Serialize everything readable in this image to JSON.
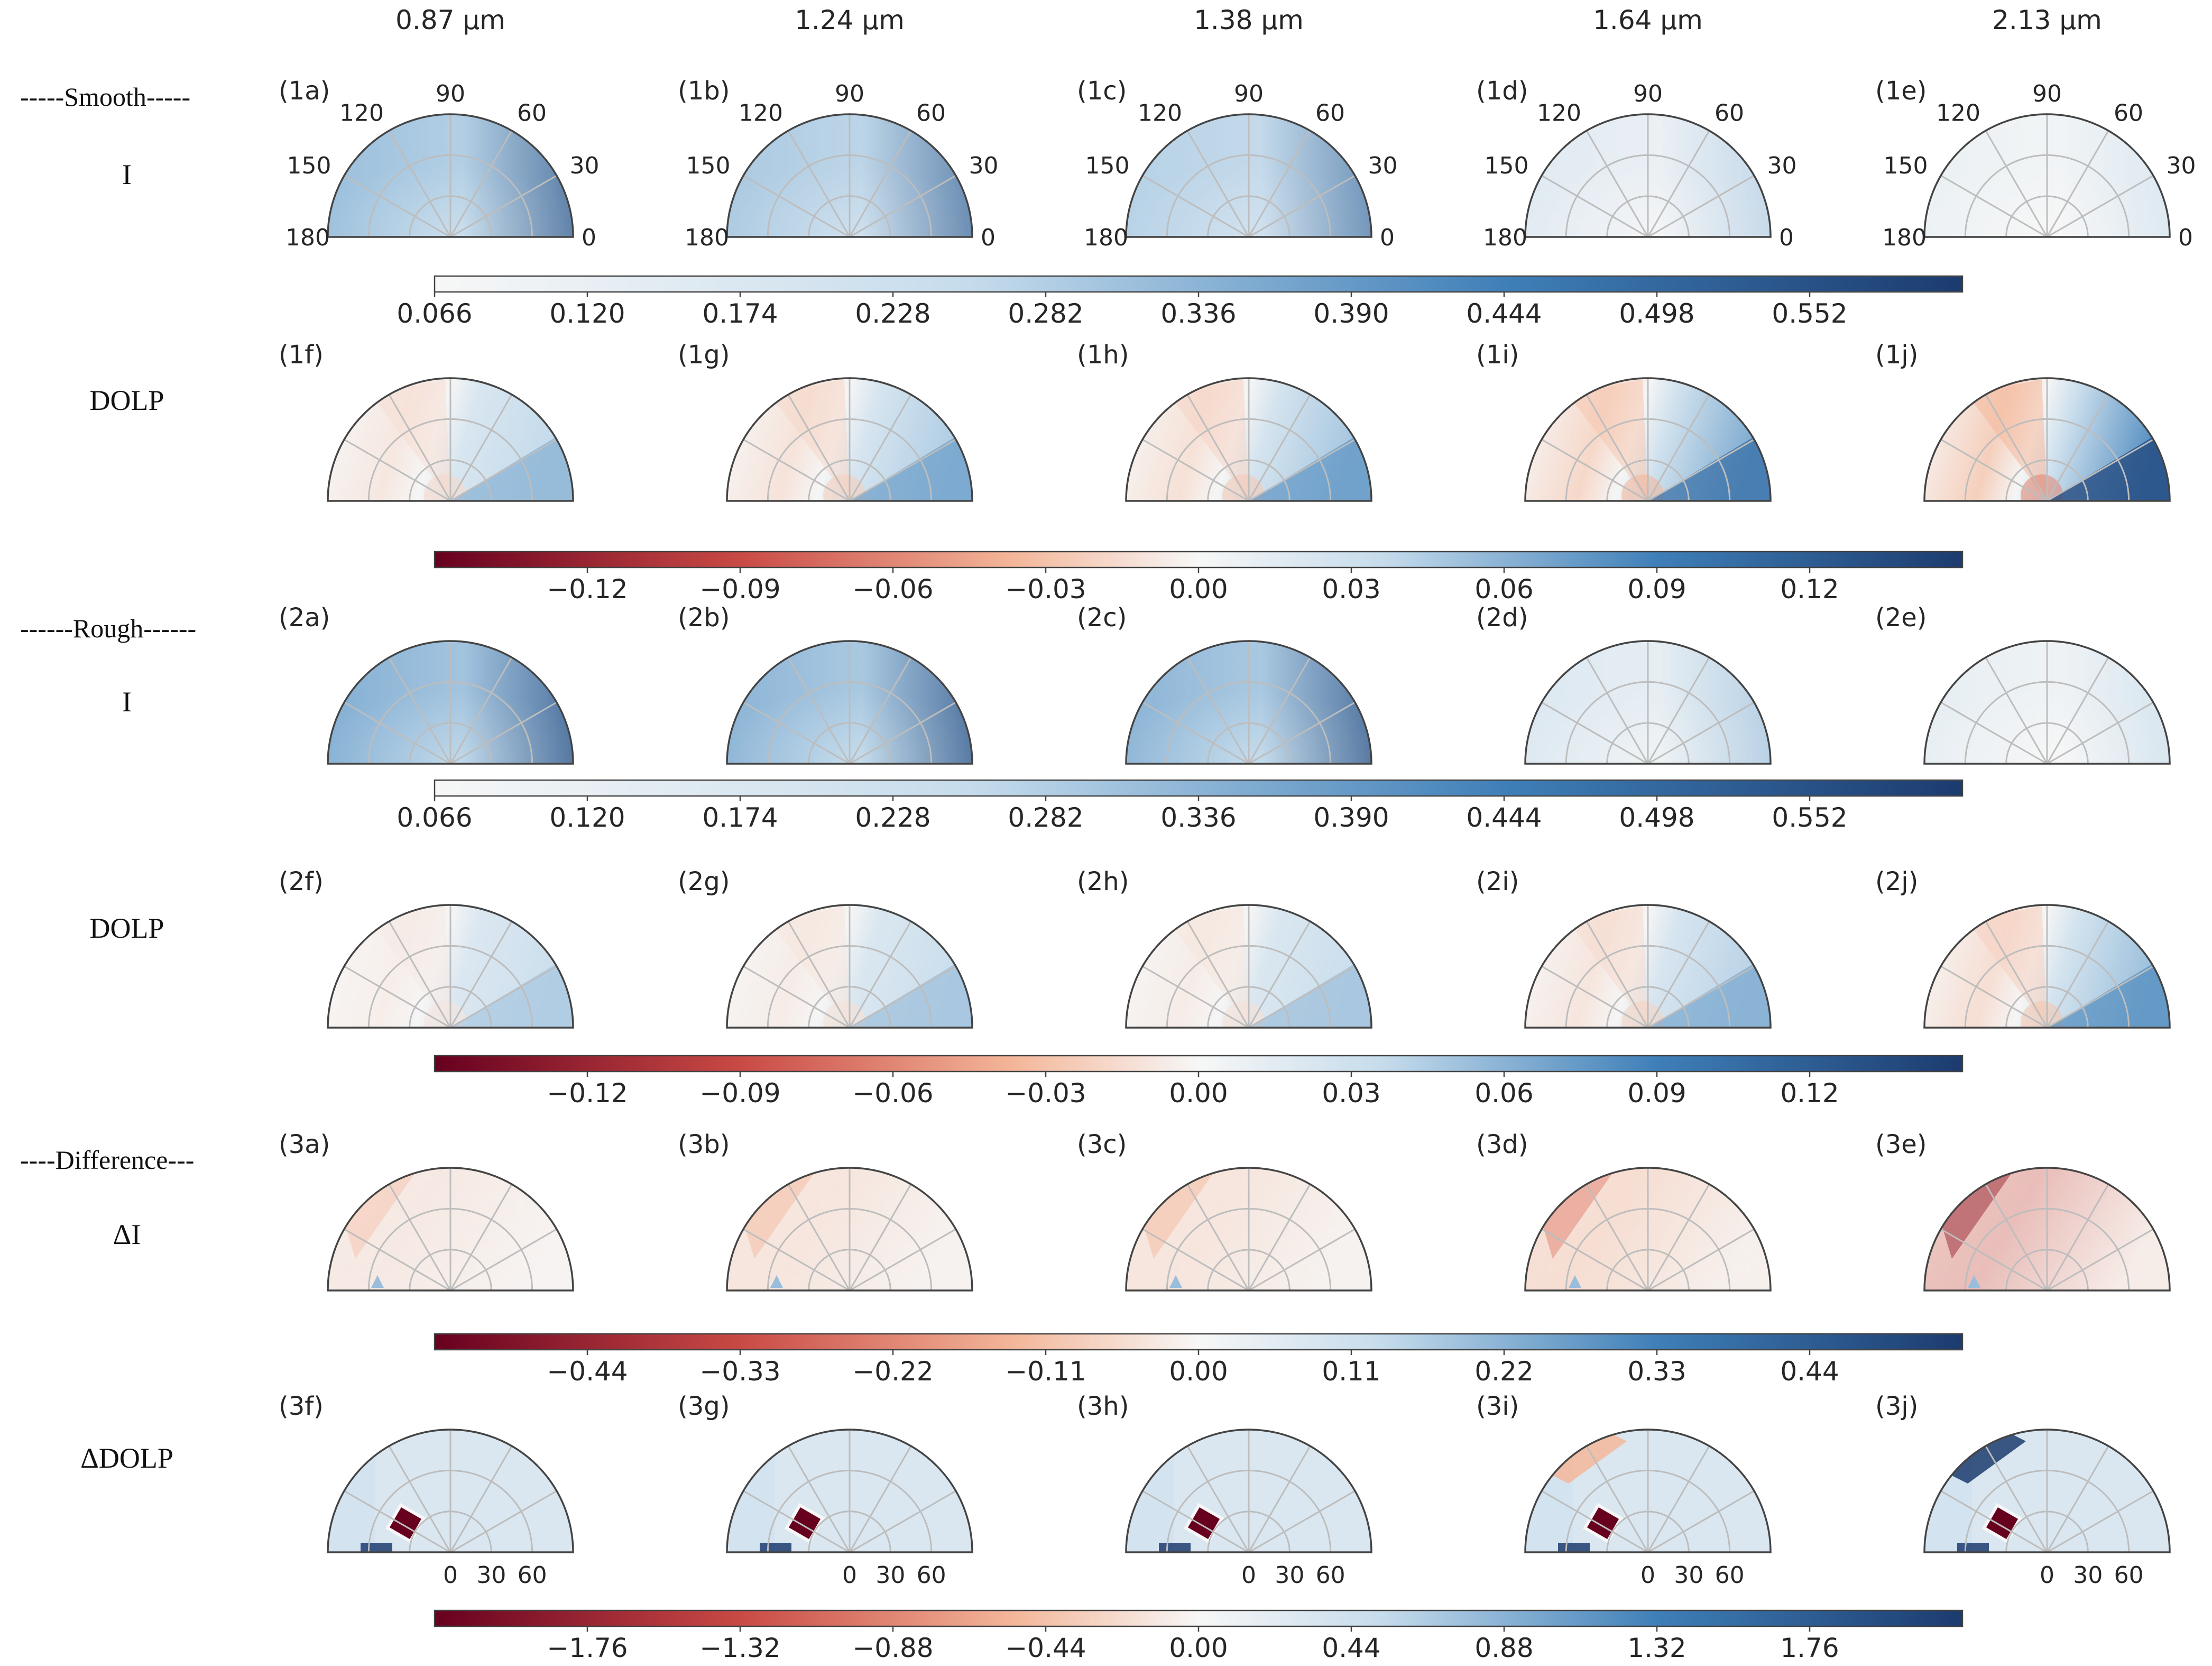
{
  "chart_data": {
    "type": "heatmap",
    "subtype": "polar-semicircle-grid",
    "title": "",
    "columns": [
      "0.87 µm",
      "1.24 µm",
      "1.38 µm",
      "1.64 µm",
      "2.13 µm"
    ],
    "group_labels": [
      "-----Smooth-----",
      "------Rough------",
      "----Difference---"
    ],
    "angle_ticks": [
      "0",
      "30",
      "60",
      "90",
      "120",
      "150",
      "180"
    ],
    "bottom_ticks": [
      "0",
      "30",
      "60"
    ],
    "rows": [
      {
        "label": "I",
        "panels": [
          "(1a)",
          "(1b)",
          "(1c)",
          "(1d)",
          "(1e)"
        ],
        "palette": "blues",
        "intensity": [
          0.7,
          0.66,
          0.63,
          0.28,
          0.14
        ]
      },
      {
        "label": "DOLP",
        "panels": [
          "(1f)",
          "(1g)",
          "(1h)",
          "(1i)",
          "(1j)"
        ],
        "palette": "diverging",
        "intensity": [
          0.35,
          0.45,
          0.5,
          0.7,
          0.9
        ]
      },
      {
        "label": "I",
        "panels": [
          "(2a)",
          "(2b)",
          "(2c)",
          "(2d)",
          "(2e)"
        ],
        "palette": "blues",
        "intensity": [
          0.76,
          0.74,
          0.74,
          0.33,
          0.2
        ]
      },
      {
        "label": "DOLP",
        "panels": [
          "(2f)",
          "(2g)",
          "(2h)",
          "(2i)",
          "(2j)"
        ],
        "palette": "diverging",
        "intensity": [
          0.2,
          0.25,
          0.25,
          0.4,
          0.55
        ]
      },
      {
        "label": "ΔI",
        "panels": [
          "(3a)",
          "(3b)",
          "(3c)",
          "(3d)",
          "(3e)"
        ],
        "palette": "reds",
        "intensity": [
          0.3,
          0.38,
          0.38,
          0.55,
          0.8
        ]
      },
      {
        "label": "ΔDOLP",
        "panels": [
          "(3f)",
          "(3g)",
          "(3h)",
          "(3i)",
          "(3j)"
        ],
        "palette": "difference",
        "intensity": [
          0.4,
          0.55,
          0.55,
          0.55,
          0.6
        ]
      }
    ],
    "colorbars": [
      {
        "kind": "sequential",
        "range": [
          0.066,
          0.606
        ],
        "ticks": [
          "0.066",
          "0.120",
          "0.174",
          "0.228",
          "0.282",
          "0.336",
          "0.390",
          "0.444",
          "0.498",
          "0.552"
        ]
      },
      {
        "kind": "diverging",
        "range": [
          -0.15,
          0.15
        ],
        "ticks": [
          "−0.12",
          "−0.09",
          "−0.06",
          "−0.03",
          "0.00",
          "0.03",
          "0.06",
          "0.09",
          "0.12"
        ]
      },
      {
        "kind": "sequential",
        "range": [
          0.066,
          0.606
        ],
        "ticks": [
          "0.066",
          "0.120",
          "0.174",
          "0.228",
          "0.282",
          "0.336",
          "0.390",
          "0.444",
          "0.498",
          "0.552"
        ]
      },
      {
        "kind": "diverging",
        "range": [
          -0.15,
          0.15
        ],
        "ticks": [
          "−0.12",
          "−0.09",
          "−0.06",
          "−0.03",
          "0.00",
          "0.03",
          "0.06",
          "0.09",
          "0.12"
        ]
      },
      {
        "kind": "diverging",
        "range": [
          -0.55,
          0.55
        ],
        "ticks": [
          "−0.44",
          "−0.33",
          "−0.22",
          "−0.11",
          "0.00",
          "0.11",
          "0.22",
          "0.33",
          "0.44"
        ]
      },
      {
        "kind": "diverging",
        "range": [
          -2.2,
          2.2
        ],
        "ticks": [
          "−1.76",
          "−1.32",
          "−0.88",
          "−0.44",
          "0.00",
          "0.44",
          "0.88",
          "1.32",
          "1.76"
        ]
      }
    ],
    "colors": {
      "deep_blue": "#1c3b6e",
      "mid_blue": "#3f7fb8",
      "light_blue": "#c6dcec",
      "white": "#f7f7f7",
      "light_red": "#f4b79a",
      "mid_red": "#c94a45",
      "deep_red": "#67001f",
      "grid": "#bdbdbd",
      "outline": "#444444"
    }
  }
}
